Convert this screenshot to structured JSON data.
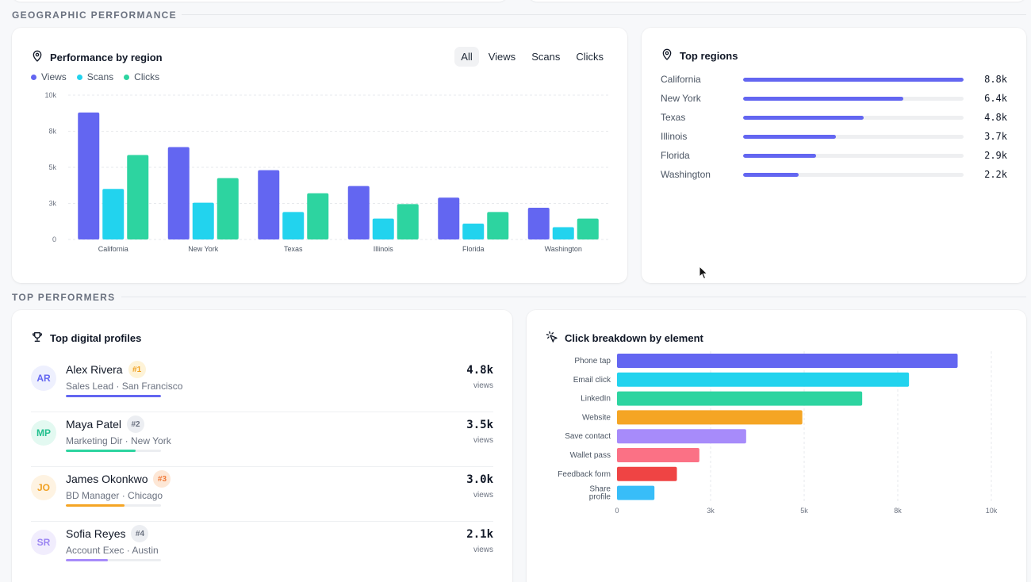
{
  "sections": {
    "geo": "GEOGRAPHIC PERFORMANCE",
    "top": "TOP PERFORMERS"
  },
  "region_card": {
    "title": "Performance by region",
    "icon": "map-pin-icon",
    "filters": [
      "All",
      "Views",
      "Scans",
      "Clicks"
    ],
    "active_filter": "All"
  },
  "top_regions": {
    "title": "Top regions",
    "icon": "map-pin-icon",
    "max_value": 8.8,
    "items": [
      {
        "name": "California",
        "value": 8.8,
        "label": "8.8k"
      },
      {
        "name": "New York",
        "value": 6.4,
        "label": "6.4k"
      },
      {
        "name": "Texas",
        "value": 4.8,
        "label": "4.8k"
      },
      {
        "name": "Illinois",
        "value": 3.7,
        "label": "3.7k"
      },
      {
        "name": "Florida",
        "value": 2.9,
        "label": "2.9k"
      },
      {
        "name": "Washington",
        "value": 2.2,
        "label": "2.2k"
      }
    ]
  },
  "profiles_card": {
    "title": "Top digital profiles",
    "icon": "trophy-icon",
    "items": [
      {
        "initials": "AR",
        "name": "Alex Rivera",
        "rank": "#1",
        "role": "Sales Lead · San Francisco",
        "value": "4.8k",
        "unit": "views",
        "progress": 1.0,
        "color": "#6366f1",
        "avatar_bg": "#eef0fe",
        "avatar_fg": "#6366f1",
        "rank_bg": "#fef3d7",
        "rank_fg": "#f0a020"
      },
      {
        "initials": "MP",
        "name": "Maya Patel",
        "rank": "#2",
        "role": "Marketing Dir · New York",
        "value": "3.5k",
        "unit": "views",
        "progress": 0.73,
        "color": "#2dd4a0",
        "avatar_bg": "#e3f9f1",
        "avatar_fg": "#22c08e",
        "rank_bg": "#eceef2",
        "rank_fg": "#6b7280"
      },
      {
        "initials": "JO",
        "name": "James Okonkwo",
        "rank": "#3",
        "role": "BD Manager · Chicago",
        "value": "3.0k",
        "unit": "views",
        "progress": 0.62,
        "color": "#f5a524",
        "avatar_bg": "#fef3e2",
        "avatar_fg": "#f0a020",
        "rank_bg": "#fde7d6",
        "rank_fg": "#f07a3a"
      },
      {
        "initials": "SR",
        "name": "Sofia Reyes",
        "rank": "#4",
        "role": "Account Exec · Austin",
        "value": "2.1k",
        "unit": "views",
        "progress": 0.44,
        "color": "#a78bfa",
        "avatar_bg": "#f1edfd",
        "avatar_fg": "#9b85f2",
        "rank_bg": "#eceef2",
        "rank_fg": "#6b7280"
      }
    ]
  },
  "clicks_card": {
    "title": "Click breakdown by element",
    "icon": "cursor-click-icon"
  },
  "chart_data": [
    {
      "type": "bar",
      "categories": [
        "California",
        "New York",
        "Texas",
        "Illinois",
        "Florida",
        "Washington"
      ],
      "series": [
        {
          "name": "Views",
          "color": "#6366f1",
          "values": [
            8.8,
            6.4,
            4.8,
            3.7,
            2.9,
            2.2
          ]
        },
        {
          "name": "Scans",
          "color": "#22d3ee",
          "values": [
            3.5,
            2.55,
            1.9,
            1.45,
            1.1,
            0.85
          ]
        },
        {
          "name": "Clicks",
          "color": "#2dd4a0",
          "values": [
            5.85,
            4.25,
            3.2,
            2.45,
            1.9,
            1.45
          ]
        }
      ],
      "yticks": [
        "0",
        "3k",
        "5k",
        "8k",
        "10k"
      ],
      "ytick_values": [
        0,
        2.5,
        5,
        7.5,
        10
      ],
      "ylim": [
        0,
        10
      ],
      "grid": true,
      "legend": "top-left"
    },
    {
      "type": "bar",
      "orientation": "horizontal",
      "categories": [
        "Phone tap",
        "Email click",
        "LinkedIn",
        "Website",
        "Save contact",
        "Wallet pass",
        "Feedback form",
        "Share profile"
      ],
      "values": [
        9.1,
        7.8,
        6.55,
        4.95,
        3.45,
        2.2,
        1.6,
        1.0
      ],
      "colors": [
        "#6366f1",
        "#22d3ee",
        "#2dd4a0",
        "#f5a524",
        "#a78bfa",
        "#fb7185",
        "#ef4444",
        "#38bdf8"
      ],
      "xticks": [
        "0",
        "3k",
        "5k",
        "8k",
        "10k"
      ],
      "xtick_values": [
        0,
        2.5,
        5,
        7.5,
        10
      ],
      "xlim": [
        0,
        10
      ],
      "grid": true
    }
  ]
}
